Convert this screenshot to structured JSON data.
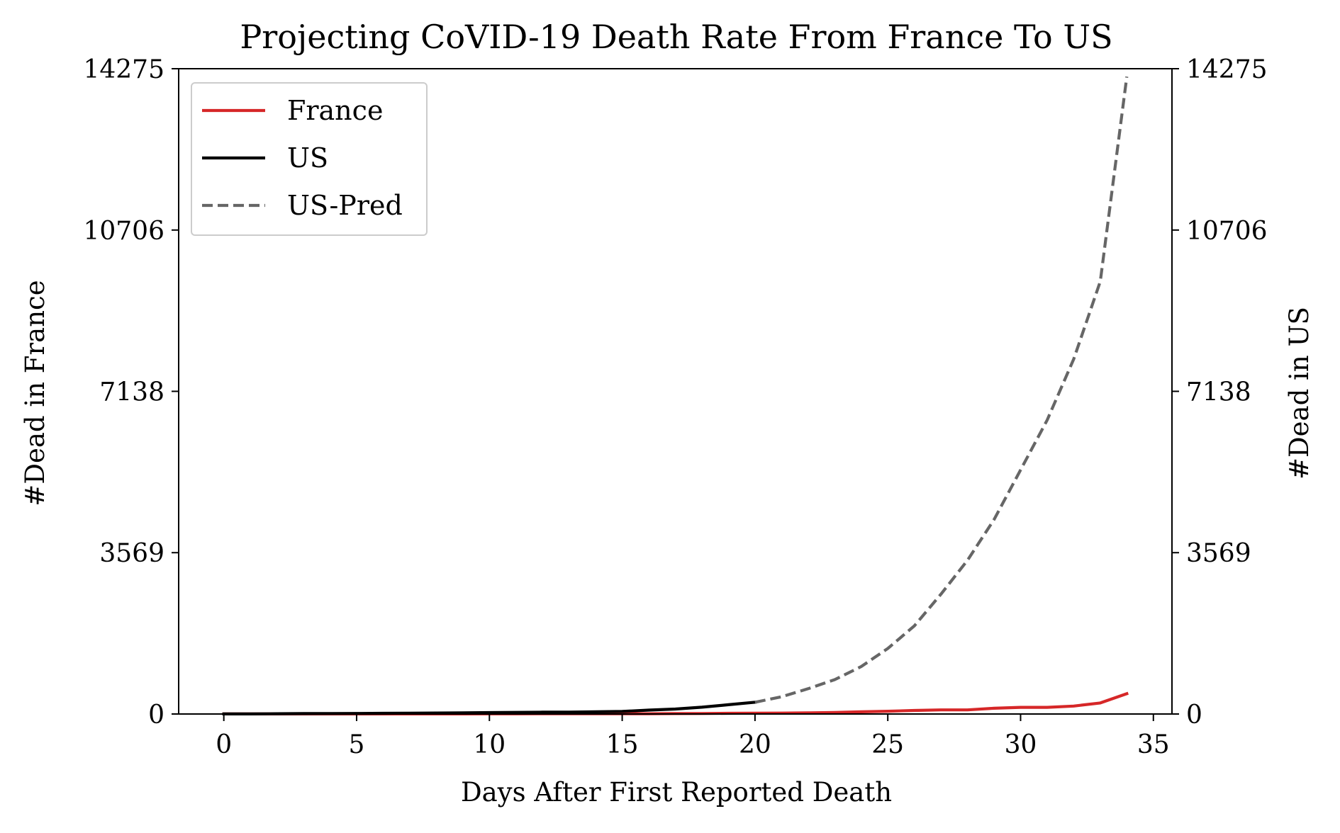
{
  "chart_data": {
    "type": "line",
    "title": "Projecting CoVID-19 Death Rate From France To US",
    "xlabel": "Days After First Reported Death",
    "ylabel": "#Dead in France",
    "y2label": "#Dead in US",
    "xlim": [
      -1.7,
      35.7
    ],
    "ylim": [
      0,
      14275
    ],
    "xticks": [
      "0",
      "5",
      "10",
      "15",
      "20",
      "25",
      "30",
      "35"
    ],
    "yticks": [
      "0",
      "3569",
      "7138",
      "10706",
      "14275"
    ],
    "y2ticks": [
      "0",
      "3569",
      "7138",
      "10706",
      "14275"
    ],
    "legend_position": "upper-left",
    "grid": false,
    "series": [
      {
        "name": "France",
        "color": "#d62728",
        "style": "solid",
        "axis": "left",
        "x": [
          0,
          1,
          2,
          3,
          4,
          5,
          6,
          7,
          8,
          9,
          10,
          11,
          12,
          13,
          14,
          15,
          16,
          17,
          18,
          19,
          20,
          21,
          22,
          23,
          24,
          25,
          26,
          27,
          28,
          29,
          30,
          31,
          32,
          33,
          34
        ],
        "values": [
          1,
          1,
          1,
          1,
          1,
          2,
          2,
          2,
          2,
          2,
          3,
          3,
          4,
          4,
          5,
          6,
          7,
          9,
          11,
          16,
          19,
          21,
          25,
          33,
          48,
          61,
          79,
          91,
          91,
          127,
          148,
          148,
          175,
          244,
          450
        ]
      },
      {
        "name": "US",
        "color": "#000000",
        "style": "solid",
        "axis": "right",
        "x": [
          0,
          1,
          2,
          3,
          4,
          5,
          6,
          7,
          8,
          9,
          10,
          11,
          12,
          13,
          14,
          15,
          16,
          17,
          18,
          19,
          20
        ],
        "values": [
          1,
          1,
          6,
          9,
          11,
          12,
          15,
          19,
          22,
          26,
          31,
          36,
          40,
          41,
          48,
          57,
          86,
          109,
          150,
          205,
          260
        ]
      },
      {
        "name": "US-Pred",
        "color": "#666666",
        "style": "dashed",
        "axis": "right",
        "x": [
          20,
          21,
          22,
          23,
          24,
          25,
          26,
          27,
          28,
          29,
          30,
          31,
          32,
          33,
          34
        ],
        "values": [
          260,
          380,
          560,
          760,
          1050,
          1450,
          1950,
          2650,
          3400,
          4300,
          5400,
          6500,
          7850,
          9570,
          14100
        ]
      }
    ]
  }
}
